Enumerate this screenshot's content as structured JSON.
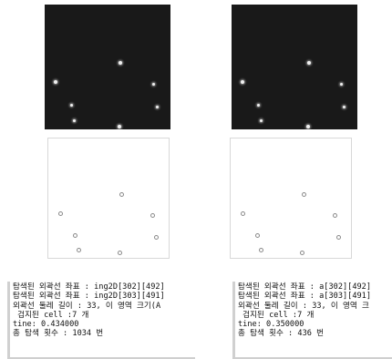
{
  "left": {
    "console_lines": [
      "탐색된 외곽선 좌표 : ing2D[302][492]",
      "탐색된 외곽선 좌표 : ing2D[303][491]",
      "외곽선 둘레 길이 : 33, 이 영역 크기(A",
      " 검지된 cell :7 개",
      "tine: 0.434000",
      "총 탐색 횟수 : 1034 번"
    ]
  },
  "right": {
    "console_lines": [
      "탐색된 외곽선 좌표 : a[302][492]",
      "탐색된 외곽선 좌표 : a[303][491]",
      "외곽선 둘레 길이 : 33, 이 영역 크",
      " 검지된 cell :7 개",
      "tine: 0.350000",
      "총 탐색 횟수 : 436 번"
    ]
  },
  "colors": {
    "dark_background": "#191919",
    "cell_dot": "#f0f0f0",
    "contour_ring": "#8a8a8a"
  },
  "icons": [
    "cell-dot",
    "contour-ring"
  ]
}
